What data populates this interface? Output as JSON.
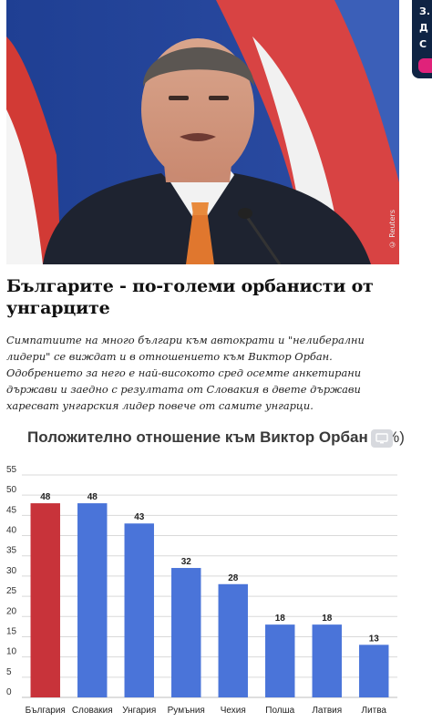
{
  "photo": {
    "credit": "© Reuters",
    "alt_subject": "portrait"
  },
  "article": {
    "headline": "Българите - по-големи орбанисти от унгарците",
    "lead": "Симпатиите на много българи към автократи и \"нелиберални лидери\" се виждат и в отношението към Виктор Орбан. Одобрението за него е най-високото сред осемте анкетирани държави и заедно с резултата от Словакия в двете държави харесват унгарския лидер повече от самите унгарци."
  },
  "side_ad": {
    "lines": [
      "З.",
      "Д",
      "С"
    ]
  },
  "chart_title": {
    "main": "Положително отношение към Виктор Орбан",
    "unit": "(в%)",
    "embed_icon": "monitor-icon"
  },
  "chart_data": {
    "type": "bar",
    "title": "Положително отношение към Виктор Орбан (в%)",
    "categories": [
      "България",
      "Словакия",
      "Унгария",
      "Румъния",
      "Чехия",
      "Полша",
      "Латвия",
      "Литва"
    ],
    "values": [
      48,
      48,
      43,
      32,
      28,
      18,
      18,
      13
    ],
    "bar_colors": [
      "#c8333a",
      "#4a74d9",
      "#4a74d9",
      "#4a74d9",
      "#4a74d9",
      "#4a74d9",
      "#4a74d9",
      "#4a74d9"
    ],
    "yticks": [
      0,
      5,
      10,
      15,
      20,
      25,
      30,
      35,
      40,
      45,
      50,
      55
    ],
    "ylim": [
      0,
      55
    ],
    "grid": true,
    "xlabel": "",
    "ylabel": ""
  },
  "colors": {
    "highlight": "#c8333a",
    "bar": "#4a74d9",
    "grid": "#d9d9d9",
    "text": "#111111"
  }
}
